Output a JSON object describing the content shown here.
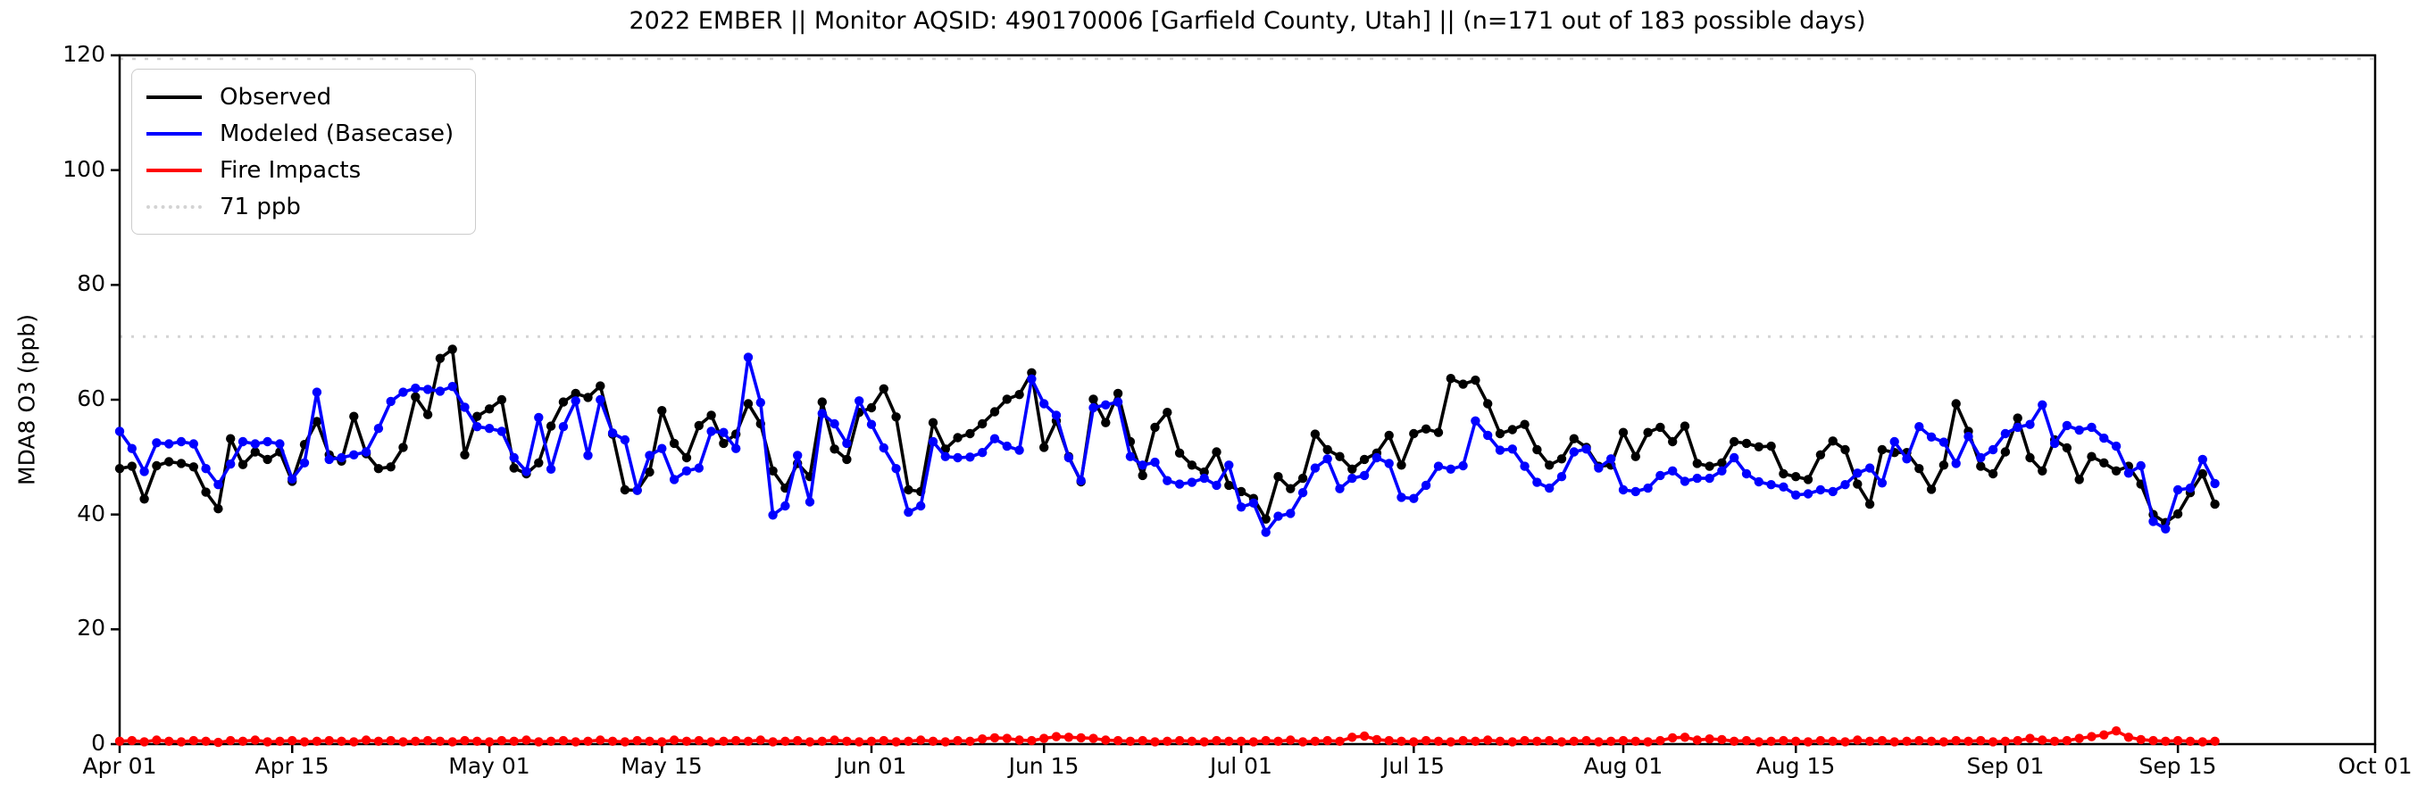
{
  "chart_data": {
    "type": "line",
    "title": "2022 EMBER || Monitor AQSID: 490170006 [Garfield County, Utah] || (n=171 out of 183 possible days)",
    "ylabel": "MDA8 O3 (ppb)",
    "ylim": [
      0,
      120
    ],
    "y_ticks": [
      0,
      20,
      40,
      60,
      80,
      100,
      120
    ],
    "x_tick_labels": [
      "Apr 01",
      "Apr 15",
      "May 01",
      "May 15",
      "Jun 01",
      "Jun 15",
      "Jul 01",
      "Jul 15",
      "Aug 01",
      "Aug 15",
      "Sep 01",
      "Sep 15",
      "Oct 01"
    ],
    "x_tick_days": [
      0,
      14,
      30,
      44,
      61,
      75,
      91,
      105,
      122,
      136,
      153,
      167,
      183
    ],
    "x_axis_total_days": 183,
    "x_data_start_label": "Apr 01",
    "x_data_end_label": "Sep 18",
    "cadence": "daily",
    "n_days_plotted": 171,
    "grid": false,
    "legend_position": "upper left",
    "threshold": {
      "label": "71 ppb",
      "value": 71,
      "color": "#d3d3d3",
      "style": "dotted"
    },
    "legend": [
      {
        "label": "Observed",
        "color": "#000000",
        "style": "solid"
      },
      {
        "label": "Modeled (Basecase)",
        "color": "#0000ff",
        "style": "solid"
      },
      {
        "label": "Fire Impacts",
        "color": "#ff0000",
        "style": "solid"
      },
      {
        "label": "71 ppb",
        "color": "#d3d3d3",
        "style": "dotted"
      }
    ],
    "series": [
      {
        "name": "Observed",
        "color": "#000000",
        "values": [
          48.0,
          48.4,
          42.7,
          48.5,
          49.2,
          48.9,
          48.3,
          43.9,
          41.0,
          53.2,
          48.7,
          50.9,
          49.6,
          50.9,
          45.8,
          52.2,
          56.2,
          50.4,
          49.3,
          57.1,
          50.6,
          48.0,
          48.3,
          51.7,
          60.5,
          57.4,
          67.2,
          68.8,
          50.4,
          57.1,
          58.4,
          60.0,
          48.1,
          47.1,
          49.0,
          55.4,
          59.6,
          61.1,
          60.4,
          62.4,
          54.0,
          44.3,
          44.2,
          47.4,
          58.1,
          52.4,
          49.9,
          55.5,
          57.3,
          52.4,
          54.0,
          59.3,
          55.8,
          47.6,
          44.6,
          48.9,
          46.6,
          59.6,
          51.4,
          49.6,
          57.8,
          58.6,
          61.9,
          57.0,
          44.3,
          44.0,
          56.0,
          51.4,
          53.4,
          54.1,
          55.8,
          57.9,
          60.1,
          60.9,
          64.7,
          51.7,
          56.3,
          50.1,
          45.7,
          60.1,
          56.0,
          61.1,
          52.7,
          46.8,
          55.2,
          57.8,
          50.7,
          48.6,
          47.4,
          50.9,
          45.1,
          44.0,
          42.8,
          39.2,
          46.6,
          44.5,
          46.3,
          54.0,
          51.3,
          50.1,
          47.9,
          49.6,
          50.7,
          53.8,
          48.6,
          54.1,
          54.9,
          54.3,
          63.7,
          62.7,
          63.4,
          59.3,
          54.1,
          54.8,
          55.7,
          51.3,
          48.6,
          49.7,
          53.2,
          51.7,
          48.4,
          48.6,
          54.3,
          50.1,
          54.3,
          55.2,
          52.7,
          55.4,
          48.9,
          48.4,
          49.0,
          52.7,
          52.4,
          51.8,
          51.9,
          47.1,
          46.6,
          46.1,
          50.4,
          52.8,
          51.3,
          45.3,
          41.8,
          51.3,
          50.8,
          50.8,
          48.0,
          44.4,
          48.6,
          59.3,
          54.5,
          48.4,
          47.1,
          50.9,
          56.8,
          49.9,
          47.6,
          53.0,
          51.6,
          46.1,
          50.1,
          49.0,
          47.6,
          48.4,
          45.3,
          40.0,
          38.6,
          40.1,
          43.8,
          47.1,
          41.8
        ]
      },
      {
        "name": "Modeled (Basecase)",
        "color": "#0000ff",
        "values": [
          54.5,
          51.5,
          47.5,
          52.5,
          52.3,
          52.7,
          52.3,
          48.0,
          45.2,
          48.8,
          52.7,
          52.3,
          52.7,
          52.3,
          46.2,
          49.0,
          61.3,
          49.6,
          49.9,
          50.4,
          50.9,
          55.0,
          59.7,
          61.3,
          62.0,
          61.8,
          61.5,
          62.3,
          58.7,
          55.3,
          55.0,
          54.5,
          49.9,
          47.5,
          56.9,
          47.9,
          55.3,
          59.8,
          50.3,
          60.0,
          54.2,
          53.0,
          44.2,
          50.3,
          51.5,
          46.1,
          47.6,
          48.1,
          54.5,
          54.3,
          51.5,
          67.4,
          59.5,
          39.9,
          41.5,
          50.3,
          42.2,
          57.6,
          55.8,
          52.4,
          59.8,
          55.7,
          51.6,
          48.0,
          40.4,
          41.5,
          52.7,
          50.1,
          49.9,
          50.0,
          50.8,
          53.2,
          51.9,
          51.2,
          63.6,
          59.3,
          57.3,
          49.9,
          45.9,
          58.6,
          59.1,
          59.6,
          50.1,
          48.6,
          49.1,
          45.9,
          45.3,
          45.6,
          46.3,
          45.1,
          48.6,
          41.3,
          42.0,
          36.9,
          39.7,
          40.2,
          43.8,
          48.1,
          49.7,
          44.5,
          46.3,
          46.8,
          49.9,
          48.9,
          43.0,
          42.8,
          45.1,
          48.4,
          47.9,
          48.5,
          56.3,
          53.8,
          51.2,
          51.4,
          48.4,
          45.6,
          44.6,
          46.6,
          50.9,
          51.4,
          48.1,
          49.7,
          44.3,
          44.0,
          44.6,
          46.8,
          47.6,
          45.8,
          46.3,
          46.3,
          47.6,
          49.9,
          47.1,
          45.7,
          45.2,
          44.8,
          43.4,
          43.6,
          44.3,
          44.0,
          45.2,
          47.2,
          48.1,
          45.5,
          52.7,
          49.7,
          55.3,
          53.5,
          52.6,
          48.9,
          53.6,
          49.9,
          51.3,
          54.1,
          55.2,
          55.7,
          59.1,
          52.4,
          55.5,
          54.7,
          55.2,
          53.3,
          51.9,
          47.2,
          48.5,
          38.8,
          37.5,
          44.3,
          44.6,
          49.6,
          45.4
        ]
      },
      {
        "name": "Fire Impacts",
        "color": "#ff0000",
        "values": [
          0.5,
          0.6,
          0.4,
          0.7,
          0.5,
          0.4,
          0.6,
          0.5,
          0.3,
          0.6,
          0.5,
          0.7,
          0.4,
          0.5,
          0.6,
          0.4,
          0.5,
          0.6,
          0.5,
          0.4,
          0.7,
          0.5,
          0.6,
          0.4,
          0.5,
          0.6,
          0.5,
          0.4,
          0.6,
          0.5,
          0.4,
          0.6,
          0.5,
          0.7,
          0.4,
          0.5,
          0.6,
          0.4,
          0.5,
          0.7,
          0.5,
          0.4,
          0.6,
          0.5,
          0.4,
          0.7,
          0.5,
          0.6,
          0.4,
          0.5,
          0.6,
          0.5,
          0.7,
          0.4,
          0.5,
          0.6,
          0.4,
          0.5,
          0.7,
          0.5,
          0.4,
          0.5,
          0.6,
          0.4,
          0.5,
          0.7,
          0.5,
          0.4,
          0.6,
          0.5,
          0.9,
          1.1,
          1.0,
          0.7,
          0.6,
          1.0,
          1.3,
          1.2,
          1.1,
          1.0,
          0.7,
          0.6,
          0.5,
          0.6,
          0.4,
          0.5,
          0.6,
          0.5,
          0.4,
          0.6,
          0.5,
          0.5,
          0.4,
          0.6,
          0.5,
          0.7,
          0.4,
          0.5,
          0.6,
          0.5,
          1.2,
          1.4,
          0.8,
          0.6,
          0.5,
          0.4,
          0.6,
          0.5,
          0.4,
          0.6,
          0.5,
          0.7,
          0.5,
          0.4,
          0.6,
          0.5,
          0.6,
          0.4,
          0.5,
          0.6,
          0.4,
          0.5,
          0.6,
          0.5,
          0.4,
          0.6,
          1.1,
          1.2,
          0.7,
          0.9,
          0.8,
          0.5,
          0.6,
          0.4,
          0.5,
          0.6,
          0.5,
          0.4,
          0.6,
          0.5,
          0.4,
          0.7,
          0.5,
          0.6,
          0.4,
          0.5,
          0.6,
          0.5,
          0.4,
          0.6,
          0.5,
          0.6,
          0.4,
          0.5,
          0.6,
          1.0,
          0.7,
          0.5,
          0.6,
          1.0,
          1.3,
          1.6,
          2.3,
          1.2,
          0.8,
          0.6,
          0.5,
          0.6,
          0.5,
          0.4,
          0.5
        ]
      }
    ]
  }
}
